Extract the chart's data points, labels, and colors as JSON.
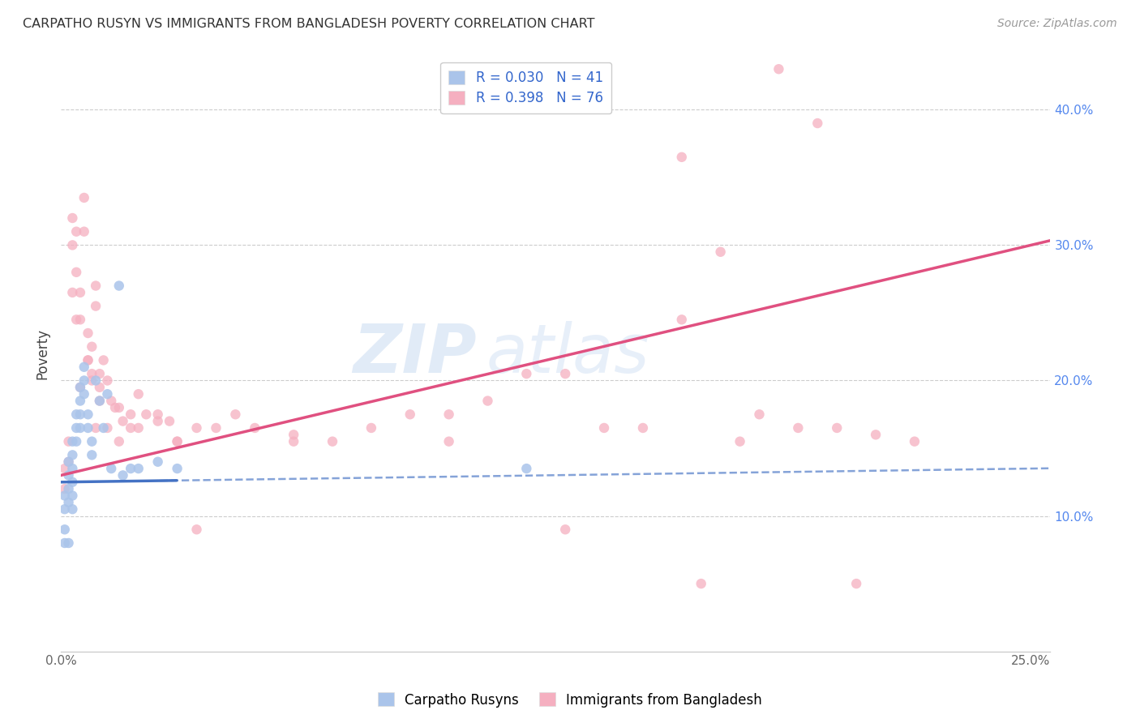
{
  "title": "CARPATHO RUSYN VS IMMIGRANTS FROM BANGLADESH POVERTY CORRELATION CHART",
  "source": "Source: ZipAtlas.com",
  "ylabel": "Poverty",
  "blue_R": 0.03,
  "blue_N": 41,
  "pink_R": 0.398,
  "pink_N": 76,
  "legend_label_blue": "Carpatho Rusyns",
  "legend_label_pink": "Immigrants from Bangladesh",
  "blue_color": "#aac4ea",
  "pink_color": "#f5afc0",
  "blue_line_color": "#4472c4",
  "pink_line_color": "#e05080",
  "watermark_zip": "ZIP",
  "watermark_atlas": "atlas",
  "xlim": [
    0.0,
    0.255
  ],
  "ylim": [
    0.0,
    0.44
  ],
  "x_tick_positions": [
    0.0,
    0.05,
    0.1,
    0.15,
    0.2,
    0.25
  ],
  "x_tick_labels": [
    "0.0%",
    "",
    "",
    "",
    "",
    "25.0%"
  ],
  "y_tick_positions": [
    0.1,
    0.2,
    0.3,
    0.4
  ],
  "y_tick_labels": [
    "10.0%",
    "20.0%",
    "30.0%",
    "40.0%"
  ],
  "blue_scatter_x": [
    0.001,
    0.001,
    0.001,
    0.001,
    0.002,
    0.002,
    0.002,
    0.002,
    0.002,
    0.003,
    0.003,
    0.003,
    0.003,
    0.003,
    0.003,
    0.004,
    0.004,
    0.004,
    0.005,
    0.005,
    0.005,
    0.005,
    0.006,
    0.006,
    0.006,
    0.007,
    0.007,
    0.008,
    0.008,
    0.009,
    0.01,
    0.011,
    0.012,
    0.013,
    0.015,
    0.016,
    0.018,
    0.02,
    0.025,
    0.03,
    0.12
  ],
  "blue_scatter_y": [
    0.115,
    0.105,
    0.09,
    0.08,
    0.14,
    0.13,
    0.12,
    0.11,
    0.08,
    0.155,
    0.145,
    0.135,
    0.125,
    0.115,
    0.105,
    0.175,
    0.165,
    0.155,
    0.195,
    0.185,
    0.175,
    0.165,
    0.21,
    0.2,
    0.19,
    0.175,
    0.165,
    0.155,
    0.145,
    0.2,
    0.185,
    0.165,
    0.19,
    0.135,
    0.27,
    0.13,
    0.135,
    0.135,
    0.14,
    0.135,
    0.135
  ],
  "pink_scatter_x": [
    0.001,
    0.001,
    0.002,
    0.002,
    0.003,
    0.003,
    0.004,
    0.004,
    0.005,
    0.005,
    0.006,
    0.006,
    0.007,
    0.007,
    0.008,
    0.008,
    0.009,
    0.009,
    0.01,
    0.01,
    0.011,
    0.012,
    0.013,
    0.014,
    0.015,
    0.016,
    0.018,
    0.02,
    0.022,
    0.025,
    0.028,
    0.03,
    0.035,
    0.04,
    0.045,
    0.05,
    0.06,
    0.07,
    0.08,
    0.09,
    0.1,
    0.11,
    0.12,
    0.13,
    0.14,
    0.15,
    0.16,
    0.17,
    0.18,
    0.19,
    0.2,
    0.21,
    0.22,
    0.003,
    0.004,
    0.005,
    0.007,
    0.008,
    0.009,
    0.01,
    0.012,
    0.015,
    0.018,
    0.02,
    0.025,
    0.03,
    0.035,
    0.06,
    0.1,
    0.13,
    0.16,
    0.185,
    0.195,
    0.205,
    0.175,
    0.165
  ],
  "pink_scatter_y": [
    0.135,
    0.12,
    0.155,
    0.14,
    0.32,
    0.3,
    0.31,
    0.28,
    0.265,
    0.245,
    0.335,
    0.31,
    0.235,
    0.215,
    0.225,
    0.205,
    0.27,
    0.255,
    0.205,
    0.195,
    0.215,
    0.2,
    0.185,
    0.18,
    0.18,
    0.17,
    0.175,
    0.19,
    0.175,
    0.17,
    0.17,
    0.155,
    0.165,
    0.165,
    0.175,
    0.165,
    0.16,
    0.155,
    0.165,
    0.175,
    0.175,
    0.185,
    0.205,
    0.205,
    0.165,
    0.165,
    0.245,
    0.295,
    0.175,
    0.165,
    0.165,
    0.16,
    0.155,
    0.265,
    0.245,
    0.195,
    0.215,
    0.2,
    0.165,
    0.185,
    0.165,
    0.155,
    0.165,
    0.165,
    0.175,
    0.155,
    0.09,
    0.155,
    0.155,
    0.09,
    0.365,
    0.43,
    0.39,
    0.05,
    0.155,
    0.05
  ]
}
